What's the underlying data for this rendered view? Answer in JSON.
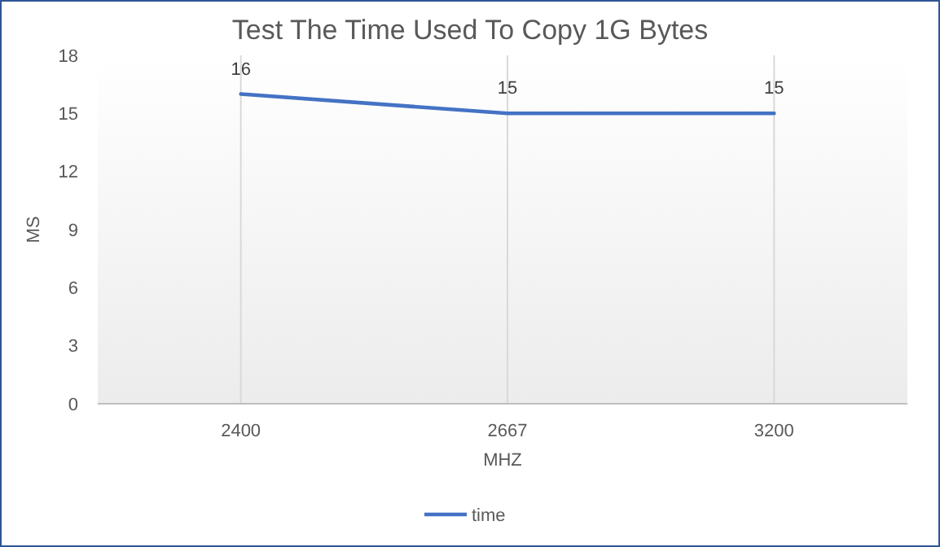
{
  "chart_data": {
    "type": "line",
    "title": "Test The Time Used To Copy 1G Bytes",
    "xlabel": "MHZ",
    "ylabel": "MS",
    "categories": [
      "2400",
      "2667",
      "3200"
    ],
    "series": [
      {
        "name": "time",
        "color": "#4472c4",
        "values": [
          16,
          15,
          15
        ]
      }
    ],
    "ylim": [
      0,
      18
    ],
    "yticks": [
      0,
      3,
      6,
      9,
      12,
      15,
      18
    ],
    "grid": "x",
    "legend": "bottom",
    "data_labels": true,
    "marker": "none",
    "line_style": "solid"
  }
}
